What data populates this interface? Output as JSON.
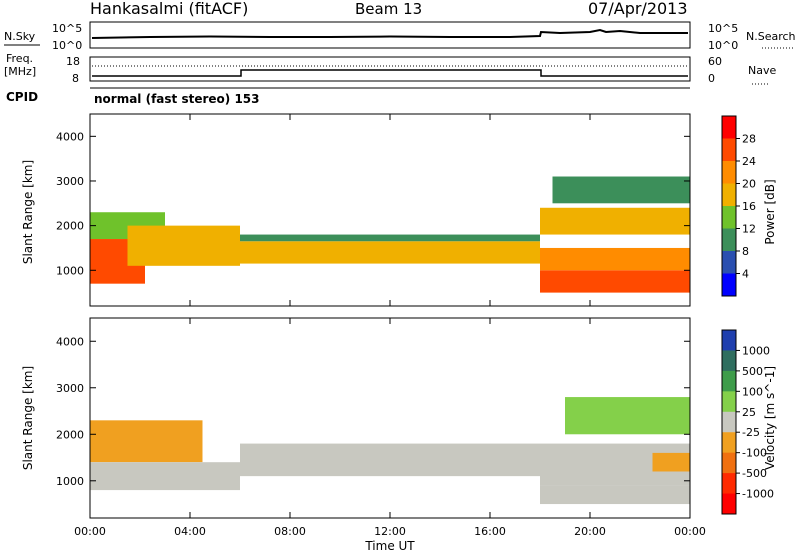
{
  "header": {
    "station": "Hankasalmi (fitACF)",
    "beam": "Beam 13",
    "date": "07/Apr/2013"
  },
  "noise_panel": {
    "left_label": "N.Sky",
    "right_label": "N.Search",
    "left_ticks": [
      "10^5",
      "10^0"
    ],
    "right_ticks": [
      "10^5",
      "10^0"
    ]
  },
  "freq_panel": {
    "left_label_1": "Freq.",
    "left_label_2": "[MHz]",
    "right_label": "Nave",
    "left_ticks": [
      "18",
      "8"
    ],
    "right_ticks": [
      "60",
      "0"
    ]
  },
  "cpid_panel": {
    "label": "CPID",
    "mode": "normal (fast stereo) 153"
  },
  "range_axis": {
    "label": "Slant Range [km]",
    "ticks": [
      "4000",
      "3000",
      "2000",
      "1000"
    ]
  },
  "time_axis": {
    "label": "Time UT",
    "ticks": [
      "00:00",
      "04:00",
      "08:00",
      "12:00",
      "16:00",
      "20:00",
      "00:00"
    ]
  },
  "power_scale": {
    "label": "Power [dB]",
    "ticks": [
      "28",
      "24",
      "20",
      "16",
      "12",
      "8",
      "4"
    ],
    "colors": [
      "#ff0000",
      "#ff4a00",
      "#ff8c00",
      "#f0b000",
      "#6fc22b",
      "#3c8f5a",
      "#2a4fb0",
      "#0000ff"
    ]
  },
  "velocity_scale": {
    "label": "Velocity [m s^-1]",
    "ticks": [
      "1000",
      "500",
      "100",
      "25",
      "-25",
      "-100",
      "-500",
      "-1000"
    ],
    "colors": [
      "#1f3fae",
      "#2f6e5f",
      "#3e9c4a",
      "#84d04a",
      "#c8c8c0",
      "#f0a020",
      "#f07010",
      "#ff2a00",
      "#ff0000"
    ]
  },
  "chart_data": {
    "type": "heatmap",
    "x_range_hours": [
      0,
      24
    ],
    "y_range_km": [
      200,
      4500
    ],
    "power_panel": {
      "scale_range_db": [
        0,
        32
      ],
      "regions": [
        {
          "t0": 0.0,
          "t1": 2.2,
          "r0": 700,
          "r1": 1700,
          "value": 26
        },
        {
          "t0": 0.0,
          "t1": 3.0,
          "r0": 1700,
          "r1": 2300,
          "value": 14
        },
        {
          "t0": 1.5,
          "t1": 6.0,
          "r0": 1100,
          "r1": 2000,
          "value": 18
        },
        {
          "t0": 6.0,
          "t1": 18.0,
          "r0": 1150,
          "r1": 1650,
          "value": 18
        },
        {
          "t0": 6.0,
          "t1": 18.0,
          "r0": 1650,
          "r1": 1800,
          "value": 10
        },
        {
          "t0": 18.0,
          "t1": 24.0,
          "r0": 500,
          "r1": 1000,
          "value": 27
        },
        {
          "t0": 18.0,
          "t1": 24.0,
          "r0": 1000,
          "r1": 1500,
          "value": 20
        },
        {
          "t0": 18.0,
          "t1": 24.0,
          "r0": 1800,
          "r1": 2400,
          "value": 16
        },
        {
          "t0": 18.5,
          "t1": 24.0,
          "r0": 2500,
          "r1": 3100,
          "value": 9
        }
      ]
    },
    "velocity_panel": {
      "scale_range_ms": [
        -1000,
        1000
      ],
      "regions": [
        {
          "t0": 0.0,
          "t1": 4.5,
          "r0": 1400,
          "r1": 2300,
          "value": -200
        },
        {
          "t0": 0.0,
          "t1": 6.0,
          "r0": 800,
          "r1": 1400,
          "value": 0
        },
        {
          "t0": 6.0,
          "t1": 18.0,
          "r0": 1100,
          "r1": 1800,
          "value": 0
        },
        {
          "t0": 18.0,
          "t1": 24.0,
          "r0": 500,
          "r1": 900,
          "value": -60
        },
        {
          "t0": 18.0,
          "t1": 24.0,
          "r0": 900,
          "r1": 1800,
          "value": 0
        },
        {
          "t0": 19.0,
          "t1": 24.0,
          "r0": 2000,
          "r1": 2800,
          "value": 120
        },
        {
          "t0": 22.5,
          "t1": 24.0,
          "r0": 1200,
          "r1": 1600,
          "value": -300
        }
      ]
    }
  }
}
